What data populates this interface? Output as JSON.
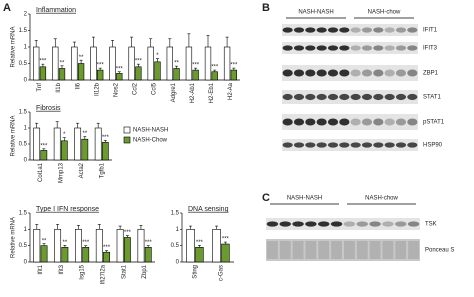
{
  "panel_labels": [
    "A",
    "B",
    "C"
  ],
  "chart_data": [
    {
      "type": "bar",
      "title": "Inflammation",
      "y_label": "Relative mRNA",
      "categories": [
        "Tnf",
        "Il1b",
        "Il6",
        "Il12b",
        "Nos2",
        "Ccl2",
        "Ccl5",
        "Adgre1",
        "H2-Ab1",
        "H2-Eb1",
        "H2-Aa"
      ],
      "series": [
        {
          "color": "#ffffff",
          "values": [
            1,
            1,
            1,
            1,
            1,
            1,
            1,
            1,
            1,
            1,
            1
          ],
          "errors": [
            0.2,
            0.25,
            0.15,
            0.3,
            0.2,
            0.3,
            0.25,
            0.25,
            0.4,
            0.35,
            0.3
          ]
        },
        {
          "color": "#6b9a2e",
          "values": [
            0.4,
            0.35,
            0.5,
            0.3,
            0.2,
            0.4,
            0.55,
            0.35,
            0.3,
            0.25,
            0.3
          ],
          "errors": [
            0.08,
            0.08,
            0.1,
            0.06,
            0.05,
            0.08,
            0.1,
            0.07,
            0.06,
            0.05,
            0.06
          ]
        }
      ],
      "annotations": [
        "***",
        "**",
        "**",
        "***",
        "***",
        "***",
        "*",
        "**",
        "***",
        "***",
        "***"
      ],
      "ylim": [
        0,
        2
      ],
      "yticks": [
        0,
        0.5,
        1,
        1.5,
        2
      ]
    },
    {
      "type": "bar",
      "title": "Fibrosis",
      "y_label": "Relative mRNA",
      "categories": [
        "Col1a1",
        "Mmp13",
        "Acta2",
        "Tgfb1"
      ],
      "series": [
        {
          "name": "NASH-NASH",
          "color": "#ffffff",
          "values": [
            1,
            1,
            1,
            1
          ],
          "errors": [
            0.15,
            0.2,
            0.15,
            0.15
          ]
        },
        {
          "name": "NASH-Chow",
          "color": "#6b9a2e",
          "values": [
            0.3,
            0.6,
            0.65,
            0.55
          ],
          "errors": [
            0.05,
            0.1,
            0.08,
            0.06
          ]
        }
      ],
      "annotations": [
        "***",
        "*",
        "**",
        "***"
      ],
      "ylim": [
        0,
        1.5
      ],
      "yticks": [
        0,
        0.5,
        1,
        1.5
      ],
      "legend": "right"
    },
    {
      "type": "bar",
      "title": "Type I IFN response",
      "y_label": "Relative mRNA",
      "categories": [
        "Ifit1",
        "Ifit3",
        "Isg15",
        "Ifi27l2a",
        "Stat1",
        "Zbp1"
      ],
      "series": [
        {
          "color": "#ffffff",
          "values": [
            1,
            1,
            1,
            1,
            1,
            1
          ],
          "errors": [
            0.15,
            0.15,
            0.12,
            0.15,
            0.1,
            0.12
          ]
        },
        {
          "color": "#6b9a2e",
          "values": [
            0.5,
            0.45,
            0.45,
            0.3,
            0.75,
            0.45
          ],
          "errors": [
            0.06,
            0.06,
            0.05,
            0.05,
            0.06,
            0.05
          ]
        }
      ],
      "annotations": [
        "**",
        "**",
        "***",
        "***",
        "***",
        "***"
      ],
      "ylim": [
        0,
        1.5
      ],
      "yticks": [
        0,
        0.5,
        1,
        1.5
      ]
    },
    {
      "type": "bar",
      "title": "DNA sensing",
      "categories": [
        "Sting",
        "c-Gas"
      ],
      "series": [
        {
          "color": "#ffffff",
          "values": [
            1,
            1
          ],
          "errors": [
            0.1,
            0.1
          ]
        },
        {
          "color": "#6b9a2e",
          "values": [
            0.45,
            0.55
          ],
          "errors": [
            0.06,
            0.06
          ]
        }
      ],
      "annotations": [
        "***",
        "***"
      ],
      "ylim": [
        0,
        1.5
      ],
      "yticks": [
        0,
        0.5,
        1,
        1.5
      ]
    }
  ],
  "blots": [
    {
      "groups": [
        "NASH-NASH",
        "NASH-chow"
      ],
      "rows": [
        "IFIT1",
        "IFIT3",
        "ZBP1",
        "STAT1",
        "pSTAT1",
        "HSP90"
      ]
    },
    {
      "groups": [
        "NASH-NASH",
        "NASH-chow"
      ],
      "rows": [
        "TSK",
        "Ponceau S"
      ]
    }
  ]
}
